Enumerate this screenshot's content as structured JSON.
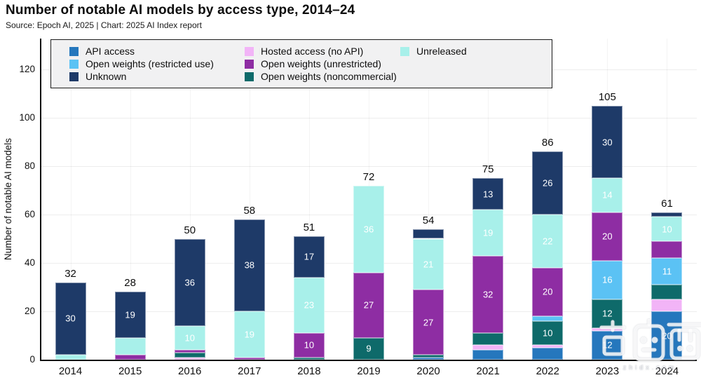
{
  "header": {
    "title": "Number of notable AI models by access type, 2014–24",
    "subtitle": "Source: Epoch AI, 2025 | Chart: 2025 AI Index report"
  },
  "legend": {
    "items": [
      {
        "label": "API access",
        "color": "#2577bd"
      },
      {
        "label": "Open weights (restricted use)",
        "color": "#5bc2f4"
      },
      {
        "label": "Unknown",
        "color": "#1e3a68"
      },
      {
        "label": "Hosted access (no API)",
        "color": "#f2b4f7"
      },
      {
        "label": "Open weights (unrestricted)",
        "color": "#8e2da3"
      },
      {
        "label": "Open weights (noncommercial)",
        "color": "#0e6a6a"
      },
      {
        "label": "Unreleased",
        "color": "#a8f0ea"
      }
    ]
  },
  "chart_data": {
    "type": "bar",
    "stacked": true,
    "title": "Number of notable AI models by access type, 2014–24",
    "ylabel": "Number of notable AI models",
    "xlabel": "",
    "categories": [
      "2014",
      "2015",
      "2016",
      "2017",
      "2018",
      "2019",
      "2020",
      "2021",
      "2022",
      "2023",
      "2024"
    ],
    "series": [
      {
        "name": "API access",
        "color": "#2577bd",
        "values": [
          0,
          0,
          0,
          0,
          0,
          0,
          1,
          4,
          5,
          12,
          20
        ]
      },
      {
        "name": "Hosted access (no API)",
        "color": "#f2b4f7",
        "values": [
          0,
          0,
          1,
          0,
          0,
          0,
          0,
          2,
          1,
          1,
          5
        ]
      },
      {
        "name": "Open weights (noncommercial)",
        "color": "#0e6a6a",
        "values": [
          0,
          0,
          2,
          0,
          1,
          9,
          1,
          5,
          10,
          12,
          6
        ]
      },
      {
        "name": "Open weights (restricted use)",
        "color": "#5bc2f4",
        "values": [
          0,
          0,
          0,
          0,
          0,
          0,
          0,
          0,
          2,
          16,
          11
        ]
      },
      {
        "name": "Open weights (unrestricted)",
        "color": "#8e2da3",
        "values": [
          0,
          2,
          1,
          1,
          10,
          27,
          27,
          32,
          20,
          20,
          7
        ]
      },
      {
        "name": "Unreleased",
        "color": "#a8f0ea",
        "values": [
          2,
          7,
          10,
          19,
          23,
          36,
          21,
          19,
          22,
          14,
          10
        ]
      },
      {
        "name": "Unknown",
        "color": "#1e3a68",
        "values": [
          30,
          19,
          36,
          38,
          17,
          0,
          4,
          13,
          26,
          30,
          2
        ]
      }
    ],
    "totals": [
      32,
      28,
      50,
      58,
      51,
      72,
      54,
      75,
      86,
      105,
      61
    ],
    "yticks": [
      0,
      20,
      40,
      60,
      80,
      100,
      120
    ],
    "ylim": [
      0,
      130
    ],
    "grid": true,
    "legend_position": "top",
    "segment_label_threshold": 9
  },
  "watermark": {
    "text": "智东西",
    "subtext": "zhidx.com"
  }
}
